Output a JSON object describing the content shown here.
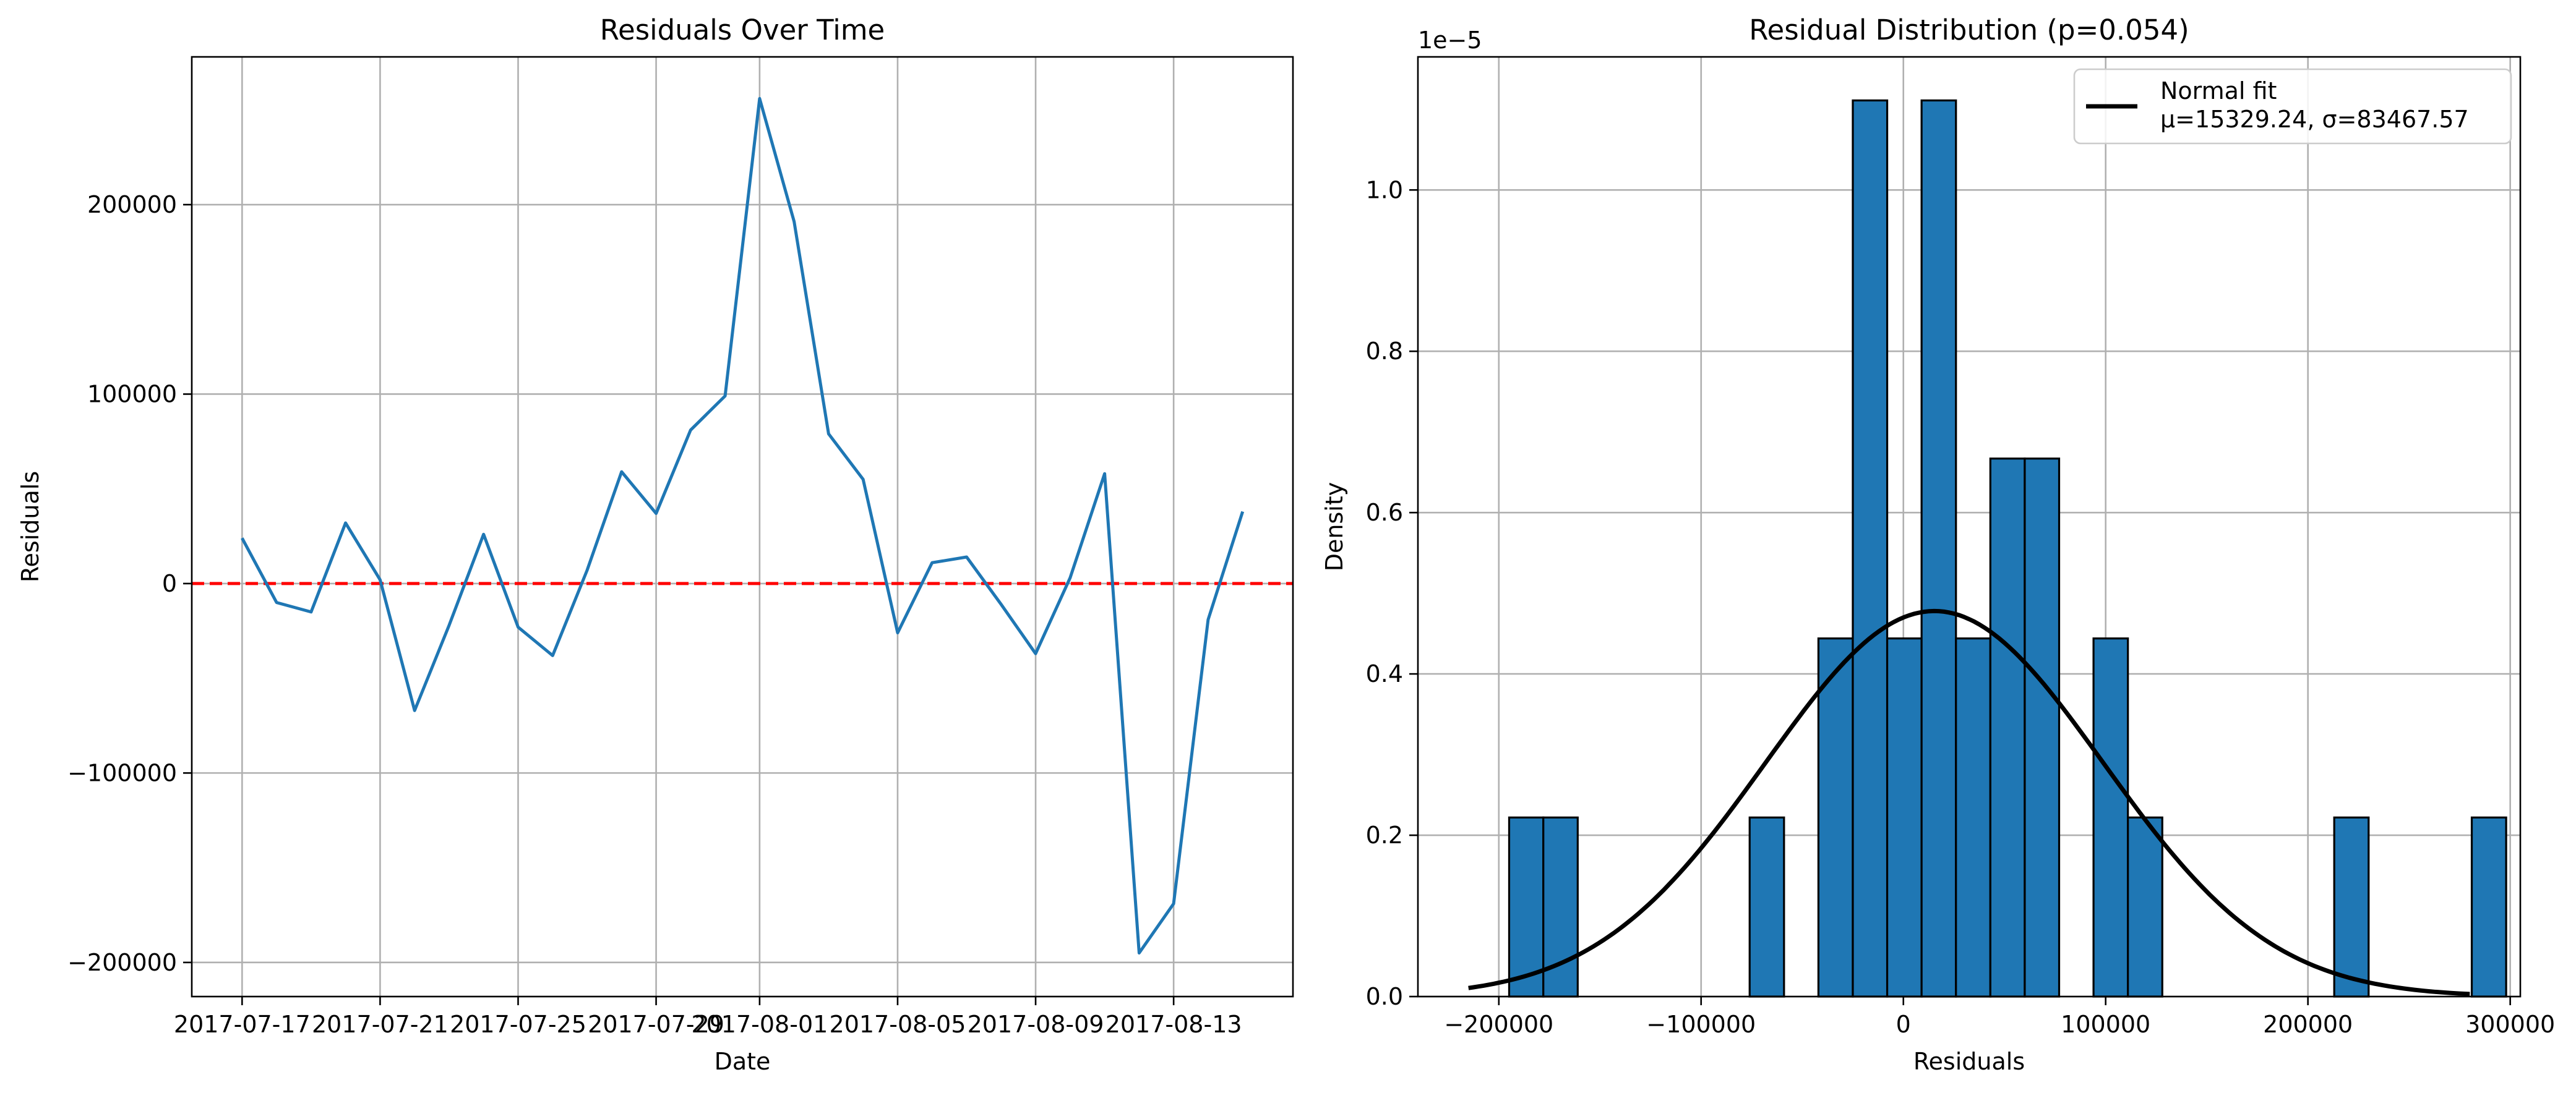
{
  "chart_data": [
    {
      "type": "line",
      "title": "Residuals Over Time",
      "xlabel": "Date",
      "ylabel": "Residuals",
      "grid": true,
      "x_ticks": [
        "2017-07-17",
        "2017-07-21",
        "2017-07-25",
        "2017-07-29",
        "2017-08-01",
        "2017-08-05",
        "2017-08-09",
        "2017-08-13"
      ],
      "y_ticks": [
        "−200000",
        "−100000",
        "0",
        "100000",
        "200000"
      ],
      "y_tick_values": [
        -200000,
        -100000,
        0,
        100000,
        200000
      ],
      "xlim": [
        "2017-07-15 13:00",
        "2017-08-16 11:00"
      ],
      "ylim": [
        -218000,
        278000
      ],
      "series": [
        {
          "color": "#1f77b4",
          "x": [
            "2017-07-17",
            "2017-07-18",
            "2017-07-19",
            "2017-07-20",
            "2017-07-21",
            "2017-07-22",
            "2017-07-23",
            "2017-07-24",
            "2017-07-25",
            "2017-07-26",
            "2017-07-27",
            "2017-07-28",
            "2017-07-29",
            "2017-07-30",
            "2017-07-31",
            "2017-08-01",
            "2017-08-02",
            "2017-08-03",
            "2017-08-04",
            "2017-08-05",
            "2017-08-06",
            "2017-08-07",
            "2017-08-08",
            "2017-08-09",
            "2017-08-10",
            "2017-08-11",
            "2017-08-12",
            "2017-08-13",
            "2017-08-14",
            "2017-08-15"
          ],
          "values": [
            24000,
            -10000,
            -15000,
            32000,
            2000,
            -67000,
            -22000,
            26000,
            -23000,
            -38000,
            7000,
            59000,
            37000,
            81000,
            99000,
            256000,
            191000,
            79000,
            55000,
            -26000,
            11000,
            14000,
            -11000,
            -37000,
            3000,
            58000,
            -195000,
            -169000,
            -19000,
            38000
          ]
        }
      ],
      "reference_line": {
        "value": 0,
        "color": "#ff0000",
        "style": "dashed"
      }
    },
    {
      "type": "histogram",
      "title": "Residual Distribution (p=0.054)",
      "xlabel": "Residuals",
      "ylabel": "Density",
      "y_scale_label": "1e−5",
      "grid": true,
      "x_ticks": [
        "−200000",
        "−100000",
        "0",
        "100000",
        "200000",
        "300000"
      ],
      "x_tick_values": [
        -200000,
        -100000,
        0,
        100000,
        200000,
        300000
      ],
      "y_ticks": [
        "0.0",
        "0.2",
        "0.4",
        "0.6",
        "0.8",
        "1.0"
      ],
      "y_tick_values": [
        0,
        0.2,
        0.4,
        0.6,
        0.8,
        1.0
      ],
      "xlim": [
        -240000,
        305000
      ],
      "ylim": [
        0,
        1.165
      ],
      "bar_color": "#1f77b4",
      "bins": [
        {
          "start": -194900,
          "end": -178000,
          "density": 0.222
        },
        {
          "start": -178000,
          "end": -161000,
          "density": 0.222
        },
        {
          "start": -76000,
          "end": -59000,
          "density": 0.222
        },
        {
          "start": -42000,
          "end": -25000,
          "density": 0.444
        },
        {
          "start": -25000,
          "end": -8000,
          "density": 1.111
        },
        {
          "start": -8000,
          "end": 9000,
          "density": 0.444
        },
        {
          "start": 9000,
          "end": 26000,
          "density": 1.111
        },
        {
          "start": 26000,
          "end": 43000,
          "density": 0.444
        },
        {
          "start": 43000,
          "end": 60000,
          "density": 0.667
        },
        {
          "start": 60000,
          "end": 77000,
          "density": 0.667
        },
        {
          "start": 94000,
          "end": 111000,
          "density": 0.444
        },
        {
          "start": 111000,
          "end": 128000,
          "density": 0.222
        },
        {
          "start": 213000,
          "end": 230000,
          "density": 0.222
        },
        {
          "start": 281000,
          "end": 298000,
          "density": 0.222
        }
      ],
      "normal_fit": {
        "label": "Normal fit",
        "params_label": "μ=15329.24, σ=83467.57",
        "mu": 15329.24,
        "sigma": 83467.57,
        "x_range": [
          -215000,
          280000
        ],
        "color": "#000000"
      },
      "legend_position": "top-right"
    }
  ]
}
